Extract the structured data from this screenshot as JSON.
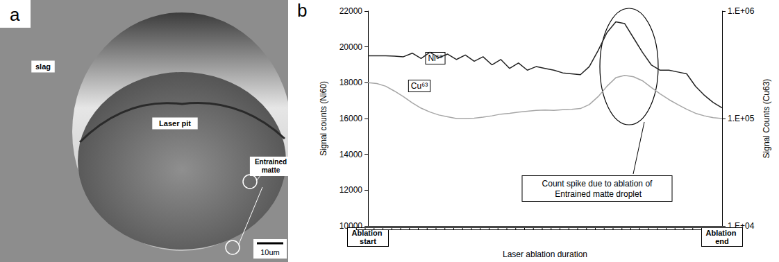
{
  "image_panel": {
    "panel_label": "a",
    "labels": {
      "slag": "slag",
      "laser_pit": "Laser pit",
      "entrained": "Entrained matte",
      "scale_bar": "10um"
    }
  },
  "chart_data": {
    "type": "line",
    "panel_label": "b",
    "categories": [
      "Ablation start",
      null,
      null,
      null,
      null,
      null,
      null,
      null,
      null,
      null,
      null,
      null,
      null,
      null,
      null,
      null,
      null,
      null,
      null,
      null,
      null,
      null,
      null,
      null,
      null,
      null,
      null,
      null,
      null,
      null,
      null,
      null,
      null,
      null,
      null,
      null,
      null,
      null,
      null,
      null,
      "Ablation end"
    ],
    "xlabel": "Laser ablation duration",
    "ylabel": "Signal counts (Ni60)",
    "y2label": "Signal Counts (Cu63)",
    "ylim": [
      10000,
      22000
    ],
    "yticks": [
      10000,
      12000,
      14000,
      16000,
      18000,
      20000,
      22000
    ],
    "y2lim": [
      10000,
      1000000
    ],
    "y2ticks": [
      {
        "value": 10000,
        "label": "1.E+04"
      },
      {
        "value": 100000,
        "label": "1.E+05"
      },
      {
        "value": 1000000,
        "label": "1.E+06"
      }
    ],
    "log": "y2",
    "grid": false,
    "series": [
      {
        "name": "Ni⁶⁰",
        "color": "#222222",
        "line_style": "solid",
        "values": [
          19500,
          19500,
          19500,
          19480,
          19450,
          19650,
          19350,
          19700,
          19400,
          19600,
          19300,
          19550,
          19200,
          19450,
          19000,
          19300,
          18800,
          19100,
          18700,
          18900,
          18800,
          18700,
          18550,
          18500,
          18450,
          18900,
          19800,
          20800,
          21400,
          21300,
          20500,
          19700,
          19000,
          18700,
          18700,
          18600,
          18500,
          17800,
          17300,
          16900,
          16600
        ]
      },
      {
        "name": "Cu⁶³",
        "color": "#a6a6a6",
        "line_style": "solid",
        "axis": "y2",
        "values": [
          216000,
          212000,
          200000,
          180000,
          160000,
          140000,
          125000,
          115000,
          108000,
          104000,
          100000,
          100000,
          101000,
          103000,
          106000,
          110000,
          112000,
          115000,
          117000,
          119000,
          120000,
          119000,
          121000,
          122000,
          124000,
          135000,
          160000,
          200000,
          240000,
          252000,
          245000,
          225000,
          195000,
          170000,
          150000,
          135000,
          122000,
          112000,
          106000,
          102000,
          100000
        ]
      }
    ],
    "annotation": "Count spike due to ablation of Entrained matte droplet"
  }
}
